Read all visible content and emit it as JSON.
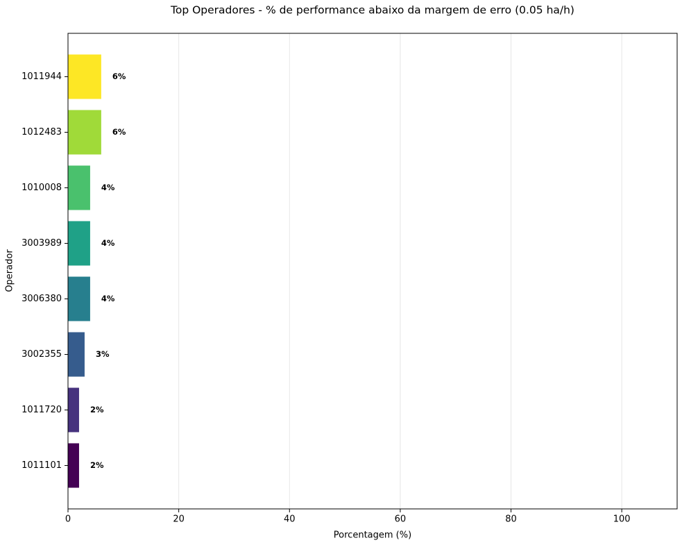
{
  "chart_data": {
    "type": "barh",
    "title": "Top Operadores - % de performance abaixo da margem de erro (0.05 ha/h)",
    "x_label": "Porcentagem (%)",
    "y_label": "Operador",
    "categories": [
      "1011944",
      "1012483",
      "1010008",
      "3003989",
      "3006380",
      "3002355",
      "1011720",
      "1011101"
    ],
    "values": [
      6,
      6,
      4,
      4,
      4,
      3,
      2,
      2
    ],
    "value_labels": [
      "6%",
      "6%",
      "4%",
      "4%",
      "4%",
      "3%",
      "2%",
      "2%"
    ],
    "colors": [
      "#fde725",
      "#a0da39",
      "#4ac16d",
      "#1fa187",
      "#277f8e",
      "#365c8d",
      "#46327e",
      "#440154"
    ],
    "xlim": [
      0,
      110
    ],
    "xticks": [
      0,
      20,
      40,
      60,
      80,
      100
    ],
    "grid": true
  }
}
